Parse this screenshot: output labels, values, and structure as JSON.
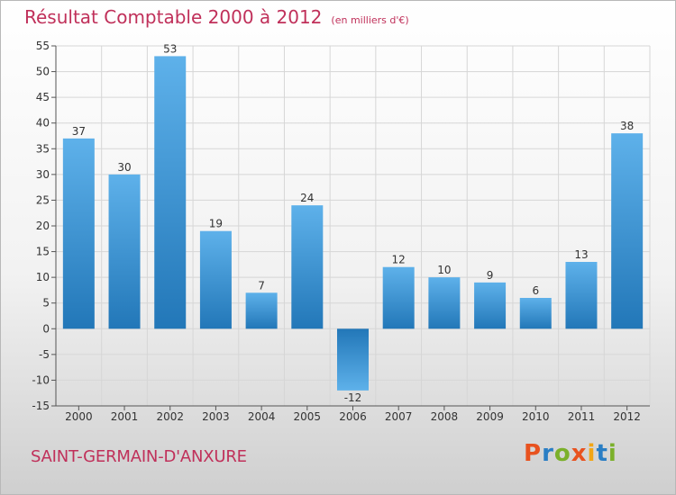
{
  "title": "Résultat Comptable 2000 à 2012",
  "subtitle": "(en milliers d'€)",
  "commune": "SAINT-GERMAIN-D'ANXURE",
  "brand": {
    "text": "Proxiti",
    "colors": [
      "#e8521f",
      "#2a7ec4",
      "#7bb02a",
      "#e8521f",
      "#f2a615",
      "#2a7ec4",
      "#7bb02a"
    ]
  },
  "colors": {
    "bar_top": "#5eb1ea",
    "bar_bottom": "#2277b8",
    "grid": "#d6d6d6",
    "title": "#c0305a"
  },
  "chart_data": {
    "type": "bar",
    "title": "Résultat Comptable 2000 à 2012",
    "subtitle": "(en milliers d'€)",
    "xlabel": "",
    "ylabel": "",
    "categories": [
      "2000",
      "2001",
      "2002",
      "2003",
      "2004",
      "2005",
      "2006",
      "2007",
      "2008",
      "2009",
      "2010",
      "2011",
      "2012"
    ],
    "values": [
      37,
      30,
      53,
      19,
      7,
      24,
      -12,
      12,
      10,
      9,
      6,
      13,
      38
    ],
    "value_labels": [
      "37",
      "30",
      "53",
      "19",
      "7",
      "24",
      "-12",
      "12",
      "10",
      "9",
      "6",
      "13",
      "38"
    ],
    "ylim": [
      -15,
      55
    ],
    "yticks": [
      -15,
      -10,
      -5,
      0,
      5,
      10,
      15,
      20,
      25,
      30,
      35,
      40,
      45,
      50,
      55
    ],
    "ytick_labels": [
      "-15",
      "-10",
      "-5",
      "0",
      "5",
      "10",
      "15",
      "20",
      "25",
      "30",
      "35",
      "40",
      "45",
      "50",
      "55"
    ],
    "grid": true,
    "legend": "none"
  }
}
